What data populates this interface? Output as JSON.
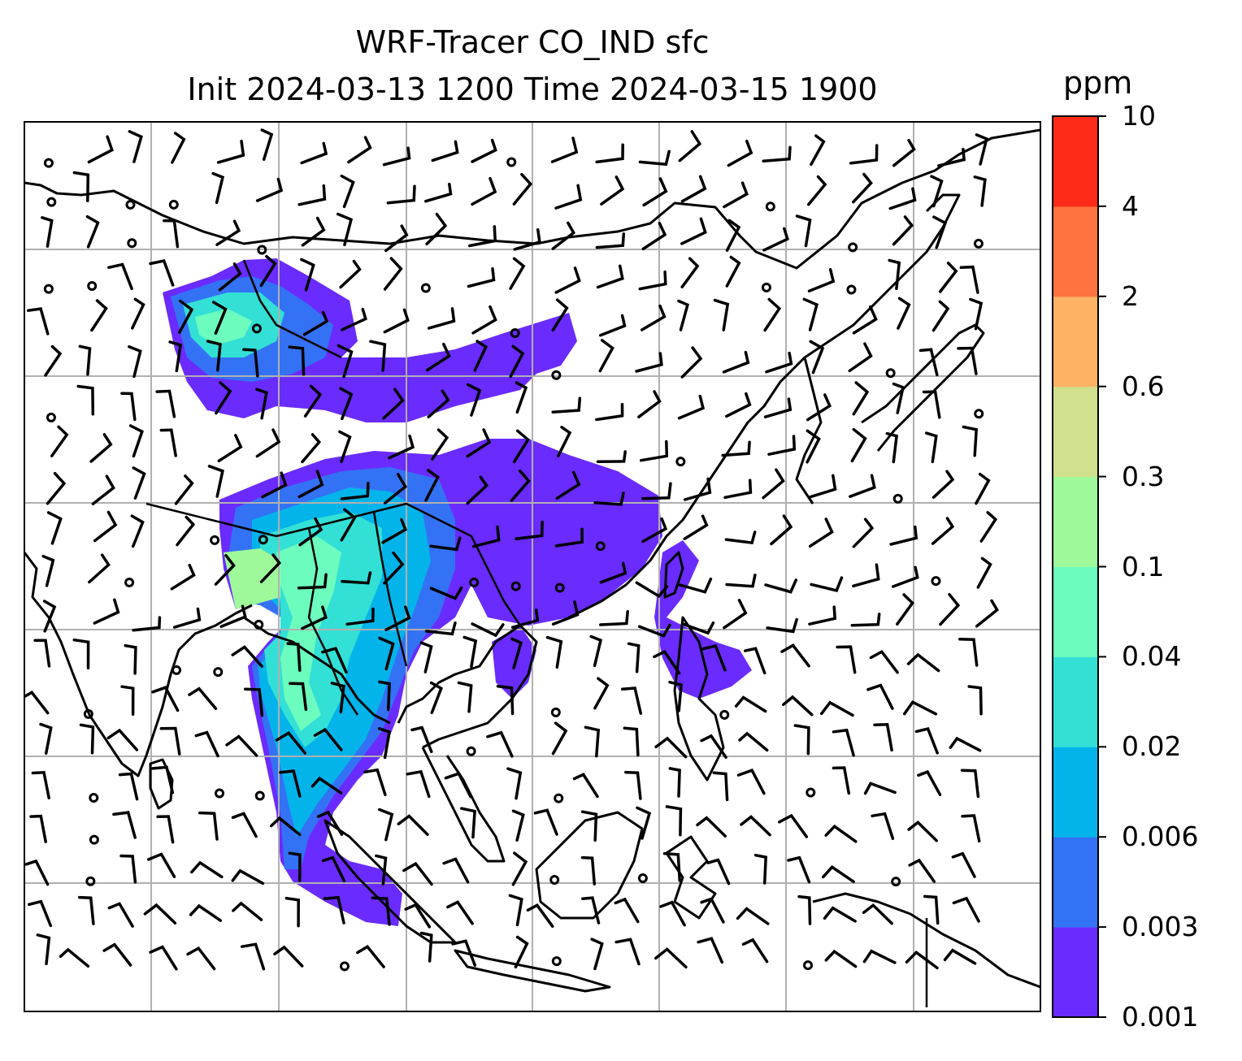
{
  "title": {
    "line1": "WRF-Tracer CO_IND sfc",
    "line2": "Init 2024-03-13 1200 Time 2024-03-15 1900"
  },
  "colorbar": {
    "unit": "ppm",
    "ticks": [
      "0.001",
      "0.003",
      "0.006",
      "0.02",
      "0.04",
      "0.1",
      "0.3",
      "0.6",
      "2",
      "4",
      "10"
    ],
    "colors": [
      "#6a2bfe",
      "#3472f5",
      "#03b4ea",
      "#33e0d6",
      "#6cfcbd",
      "#9ef99a",
      "#d1e08c",
      "#feb264",
      "#fe733f",
      "#fe2b18"
    ]
  },
  "map": {
    "gridlines": "on",
    "features": [
      "coastlines",
      "country borders",
      "wind barbs",
      "calm wind circles"
    ],
    "field": "CO_IND surface tracer concentration"
  }
}
